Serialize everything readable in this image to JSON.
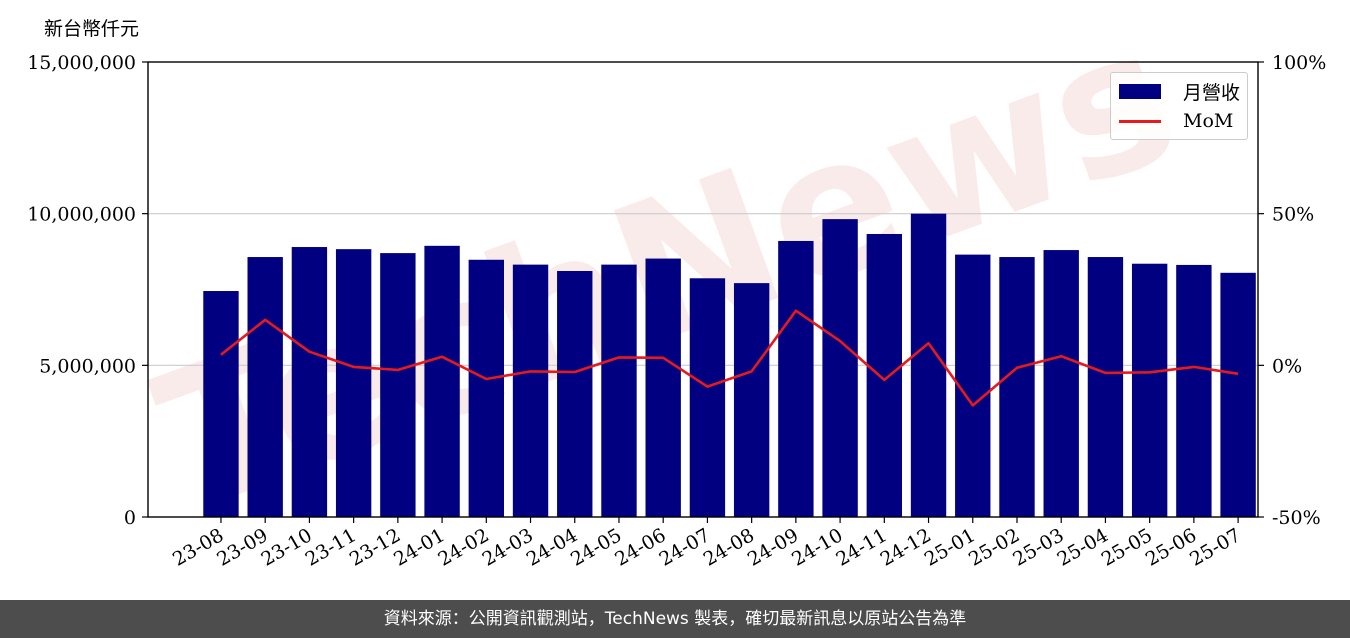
{
  "unit_label": "新台幣仟元",
  "footer": "資料來源：公開資訊觀測站，TechNews 製表，確切最新訊息以原站公告為準",
  "watermark": "TechNews",
  "colors": {
    "bar": "#000080",
    "line": "#e41a1c",
    "grid": "#cccccc",
    "footer_bg": "#4d4d4d",
    "watermark": "#f6dede"
  },
  "chart_data": {
    "type": "bar",
    "categories": [
      "23-08",
      "23-09",
      "23-10",
      "23-11",
      "23-12",
      "24-01",
      "24-02",
      "24-03",
      "24-04",
      "24-05",
      "24-06",
      "24-07",
      "24-08",
      "24-09",
      "24-10",
      "24-11",
      "24-12",
      "25-01",
      "25-02",
      "25-03",
      "25-04",
      "25-05",
      "25-06",
      "25-07"
    ],
    "series": [
      {
        "name": "月營收",
        "type": "bar",
        "axis": "left",
        "values": [
          7450000,
          8570000,
          8900000,
          8830000,
          8700000,
          8940000,
          8480000,
          8320000,
          8110000,
          8320000,
          8520000,
          7870000,
          7710000,
          9100000,
          9820000,
          9330000,
          10000000,
          8650000,
          8570000,
          8800000,
          8570000,
          8350000,
          8310000,
          8050000
        ]
      },
      {
        "name": "MoM",
        "type": "line",
        "axis": "right",
        "values": [
          3.5,
          15.0,
          4.5,
          -0.5,
          -1.5,
          2.8,
          -4.5,
          -2.0,
          -2.2,
          2.6,
          2.5,
          -7.0,
          -2.0,
          18.0,
          8.0,
          -4.8,
          7.3,
          -13.2,
          -0.8,
          3.0,
          -2.5,
          -2.3,
          -0.5,
          -2.8
        ]
      }
    ],
    "y_left": {
      "ylim": [
        0,
        15000000
      ],
      "ticks": [
        0,
        5000000,
        10000000,
        15000000
      ],
      "tick_labels": [
        "0",
        "5,000,000",
        "10,000,000",
        "15,000,000"
      ]
    },
    "y_right": {
      "ylim": [
        -50,
        100
      ],
      "ticks": [
        -50,
        0,
        50,
        100
      ],
      "tick_labels": [
        "-50%",
        "0%",
        "50%",
        "100%"
      ]
    },
    "grid": "horizontal",
    "legend": {
      "position": "top-right",
      "labels": [
        "月營收",
        "MoM"
      ]
    }
  }
}
